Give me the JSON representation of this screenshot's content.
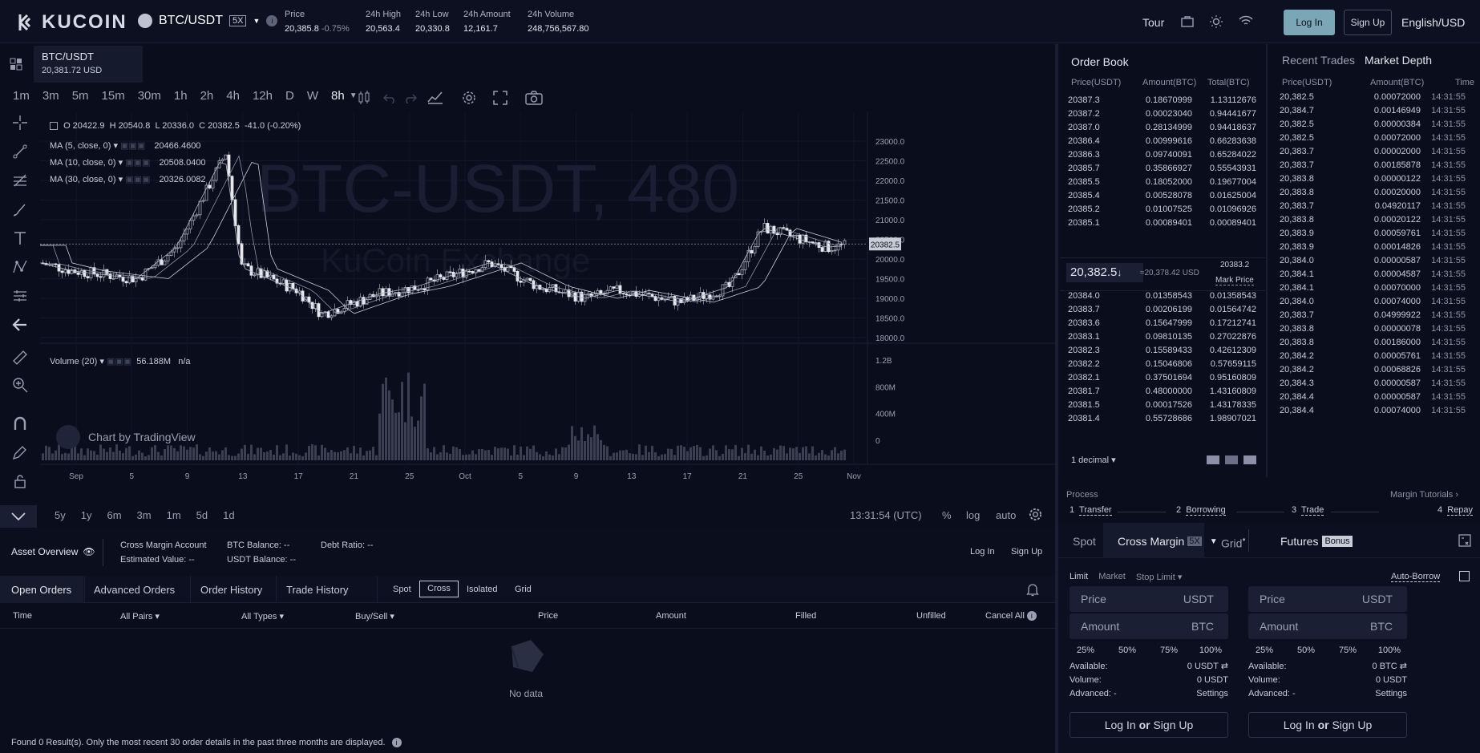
{
  "header": {
    "brand": "KUCOIN",
    "pair": "BTC/USDT",
    "leverage": "5X",
    "stats": [
      {
        "label": "Price",
        "value": "20,385.8",
        "change": "-0.75%"
      },
      {
        "label": "24h High",
        "value": "20,563.4"
      },
      {
        "label": "24h Low",
        "value": "20,330.8"
      },
      {
        "label": "24h Amount",
        "value": "12,161.7"
      },
      {
        "label": "24h Volume",
        "value": "248,756,567.80"
      }
    ],
    "tour": "Tour",
    "login": "Log In",
    "signup": "Sign Up",
    "lang": "English/USD"
  },
  "chart": {
    "symbol": "BTC/USDT",
    "symbol_price": "20,381.72 USD",
    "timeframes": [
      "1m",
      "3m",
      "5m",
      "15m",
      "30m",
      "1h",
      "2h",
      "4h",
      "12h",
      "D",
      "W",
      "8h"
    ],
    "ohlc": {
      "o": "O 20422.9",
      "h": "H 20540.8",
      "l": "L 20336.0",
      "c": "C 20382.5",
      "chg": "-41.0 (-0.20%)"
    },
    "mas": [
      {
        "label": "MA (5, close, 0)",
        "value": "20466.4600"
      },
      {
        "label": "MA (10, close, 0)",
        "value": "20508.0400"
      },
      {
        "label": "MA (30, close, 0)",
        "value": "20326.0082"
      }
    ],
    "watermark": "BTC-USDT, 480",
    "watermark2": "KuCoin Exchange",
    "current_price_tag": "20382.5",
    "price_ticks": [
      "23000.0",
      "22500.0",
      "22000.0",
      "21500.0",
      "21000.0",
      "20500.0",
      "20000.0",
      "19500.0",
      "19000.0",
      "18500.0",
      "18000.0"
    ],
    "volume_label": "Volume (20)",
    "volume_value": "56.188M",
    "volume_na": "n/a",
    "vol_ticks": [
      "1.2B",
      "800M",
      "400M",
      "0"
    ],
    "date_ticks": [
      "Sep",
      "5",
      "9",
      "13",
      "17",
      "21",
      "25",
      "Oct",
      "5",
      "9",
      "13",
      "17",
      "21",
      "25",
      "Nov"
    ],
    "credit": "Chart by TradingView",
    "ranges": [
      "5y",
      "1y",
      "6m",
      "3m",
      "1m",
      "5d",
      "1d"
    ],
    "clock": "13:31:54 (UTC)",
    "pct": "%",
    "log": "log",
    "auto": "auto"
  },
  "orderbook": {
    "title": "Order Book",
    "cols": [
      "Price(USDT)",
      "Amount(BTC)",
      "Total(BTC)"
    ],
    "asks": [
      [
        "20387.3",
        "0.18670999",
        "1.13112676"
      ],
      [
        "20387.2",
        "0.00023040",
        "0.94441677"
      ],
      [
        "20387.0",
        "0.28134999",
        "0.94418637"
      ],
      [
        "20386.4",
        "0.00999616",
        "0.66283638"
      ],
      [
        "20386.3",
        "0.09740091",
        "0.65284022"
      ],
      [
        "20385.7",
        "0.35866927",
        "0.55543931"
      ],
      [
        "20385.5",
        "0.18052000",
        "0.19677004"
      ],
      [
        "20385.4",
        "0.00528078",
        "0.01625004"
      ],
      [
        "20385.2",
        "0.01007525",
        "0.01096926"
      ],
      [
        "20385.1",
        "0.00089401",
        "0.00089401"
      ]
    ],
    "mid_price": "20,382.5",
    "mid_arrow": "↓",
    "mid_usd": "≈20,378.42 USD",
    "mark_value": "20383.2",
    "mark_label": "Mark Price",
    "bids": [
      [
        "20384.0",
        "0.01358543",
        "0.01358543"
      ],
      [
        "20383.7",
        "0.00206199",
        "0.01564742"
      ],
      [
        "20383.6",
        "0.15647999",
        "0.17212741"
      ],
      [
        "20383.1",
        "0.09810135",
        "0.27022876"
      ],
      [
        "20382.3",
        "0.15589433",
        "0.42612309"
      ],
      [
        "20382.2",
        "0.15046806",
        "0.57659115"
      ],
      [
        "20382.1",
        "0.37501694",
        "0.95160809"
      ],
      [
        "20381.7",
        "0.48000000",
        "1.43160809"
      ],
      [
        "20381.5",
        "0.00017526",
        "1.43178335"
      ],
      [
        "20381.4",
        "0.55728686",
        "1.98907021"
      ]
    ],
    "decimal": "1 decimal"
  },
  "trades": {
    "tab1": "Recent Trades",
    "tab2": "Market Depth",
    "cols": [
      "Price(USDT)",
      "Amount(BTC)",
      "Time"
    ],
    "rows": [
      [
        "20,382.5",
        "0.00072000",
        "14:31:55"
      ],
      [
        "20,384.7",
        "0.00146949",
        "14:31:55"
      ],
      [
        "20,382.5",
        "0.00000384",
        "14:31:55"
      ],
      [
        "20,382.5",
        "0.00072000",
        "14:31:55"
      ],
      [
        "20,383.7",
        "0.00002000",
        "14:31:55"
      ],
      [
        "20,383.7",
        "0.00185878",
        "14:31:55"
      ],
      [
        "20,383.8",
        "0.00000122",
        "14:31:55"
      ],
      [
        "20,383.8",
        "0.00020000",
        "14:31:55"
      ],
      [
        "20,383.7",
        "0.04920117",
        "14:31:55"
      ],
      [
        "20,383.8",
        "0.00020122",
        "14:31:55"
      ],
      [
        "20,383.9",
        "0.00059761",
        "14:31:55"
      ],
      [
        "20,383.9",
        "0.00014826",
        "14:31:55"
      ],
      [
        "20,384.0",
        "0.00000587",
        "14:31:55"
      ],
      [
        "20,384.1",
        "0.00004587",
        "14:31:55"
      ],
      [
        "20,384.1",
        "0.00070000",
        "14:31:55"
      ],
      [
        "20,384.0",
        "0.00074000",
        "14:31:55"
      ],
      [
        "20,383.7",
        "0.04999922",
        "14:31:55"
      ],
      [
        "20,383.8",
        "0.00000078",
        "14:31:55"
      ],
      [
        "20,383.8",
        "0.00186000",
        "14:31:55"
      ],
      [
        "20,384.2",
        "0.00005761",
        "14:31:55"
      ],
      [
        "20,384.2",
        "0.00068826",
        "14:31:55"
      ],
      [
        "20,384.3",
        "0.00000587",
        "14:31:55"
      ],
      [
        "20,384.4",
        "0.00000587",
        "14:31:55"
      ],
      [
        "20,384.4",
        "0.00074000",
        "14:31:55"
      ]
    ]
  },
  "process": {
    "title": "Process",
    "tutorials": "Margin Tutorials",
    "steps": [
      {
        "n": "1",
        "label": "Transfer"
      },
      {
        "n": "2",
        "label": "Borrowing"
      },
      {
        "n": "3",
        "label": "Trade"
      },
      {
        "n": "4",
        "label": "Repay"
      }
    ]
  },
  "trade_form": {
    "tabs": [
      "Spot",
      "Cross Margin",
      "Grid",
      "Futures"
    ],
    "lev": "5X",
    "bonus": "Bonus",
    "types": [
      "Limit",
      "Market",
      "Stop Limit"
    ],
    "auto_borrow": "Auto-Borrow",
    "buy": {
      "price": "Price",
      "price_unit": "USDT",
      "amount": "Amount",
      "amount_unit": "BTC",
      "available": "0 USDT",
      "volume": "0 USDT"
    },
    "sell": {
      "price": "Price",
      "price_unit": "USDT",
      "amount": "Amount",
      "amount_unit": "BTC",
      "available": "0 BTC",
      "volume": "0 USDT"
    },
    "pcts": [
      "25%",
      "50%",
      "75%",
      "100%"
    ],
    "available_label": "Available:",
    "volume_label": "Volume:",
    "advanced_label": "Advanced: -",
    "settings": "Settings",
    "login_word": "Log In",
    "or_word": "or",
    "signup_word": "Sign Up"
  },
  "asset": {
    "title": "Asset Overview",
    "account": "Cross Margin Account",
    "estimated": "Estimated Value: --",
    "btc": "BTC Balance: --",
    "usdt": "USDT Balance: --",
    "debt": "Debt Ratio: --",
    "login": "Log In",
    "signup": "Sign Up"
  },
  "orders": {
    "tabs": [
      "Open Orders",
      "Advanced Orders",
      "Order History",
      "Trade History"
    ],
    "filters": [
      "Spot",
      "Cross",
      "Isolated",
      "Grid"
    ],
    "cols": [
      "Time",
      "All Pairs",
      "All Types",
      "Buy/Sell",
      "Price",
      "Amount",
      "Filled",
      "Unfilled",
      "Cancel All"
    ],
    "empty": "No data",
    "footer": "Found 0 Result(s). Only the most recent 30 order details in the past three months are displayed."
  }
}
